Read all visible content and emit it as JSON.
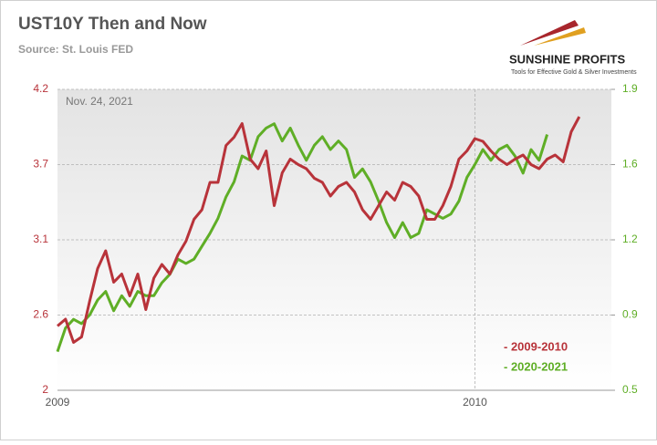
{
  "chart_data": {
    "type": "line",
    "title": "UST10Y Then and Now",
    "subtitle": "Source: St. Louis FED",
    "annotation": "Nov. 24, 2021",
    "logo": {
      "name": "SUNSHINE PROFITS",
      "tagline": "Tools for Effective Gold & Silver Investments"
    },
    "categories": [
      "2009",
      null,
      null,
      null,
      null,
      null,
      null,
      null,
      null,
      null,
      null,
      null,
      null,
      null,
      null,
      null,
      null,
      null,
      null,
      null,
      null,
      null,
      null,
      null,
      null,
      null,
      null,
      null,
      null,
      null,
      null,
      null,
      null,
      null,
      null,
      null,
      null,
      null,
      null,
      null,
      null,
      null,
      null,
      null,
      null,
      null,
      null,
      null,
      null,
      null,
      null,
      null,
      "2010",
      null,
      null,
      null,
      null,
      null,
      null,
      null,
      null,
      null,
      null,
      null,
      null,
      null,
      null,
      null,
      null,
      null
    ],
    "ylim": [
      2.0,
      4.2
    ],
    "yticks": [
      2.0,
      {
        "value": 2.55,
        "label": "2.6"
      },
      3.1,
      {
        "value": 3.65,
        "label": "3.7"
      },
      4.2
    ],
    "y2lim": [
      0.5,
      1.9
    ],
    "y2ticks": [
      0.5,
      {
        "value": 0.85,
        "label": "0.9"
      },
      1.2,
      {
        "value": 1.55,
        "label": "1.6"
      },
      1.9
    ],
    "grid": true,
    "series": [
      {
        "name": "- 2009-2010",
        "color": "#b8333a",
        "values": [
          2.47,
          2.52,
          2.35,
          2.39,
          2.65,
          2.89,
          3.02,
          2.79,
          2.85,
          2.69,
          2.85,
          2.59,
          2.82,
          2.92,
          2.85,
          2.99,
          3.09,
          3.25,
          3.32,
          3.52,
          3.52,
          3.79,
          3.85,
          3.95,
          3.69,
          3.62,
          3.75,
          3.35,
          3.59,
          3.69,
          3.65,
          3.62,
          3.55,
          3.52,
          3.42,
          3.49,
          3.52,
          3.45,
          3.32,
          3.25,
          3.35,
          3.45,
          3.39,
          3.52,
          3.49,
          3.42,
          3.25,
          3.25,
          3.35,
          3.49,
          3.69,
          3.75,
          3.84,
          3.82,
          3.75,
          3.69,
          3.65,
          3.69,
          3.72,
          3.65,
          3.62,
          3.69,
          3.72,
          3.67,
          3.89,
          4.0,
          null,
          null,
          null,
          null
        ]
      },
      {
        "name": "- 2020-2021",
        "color": "#5fae26",
        "axis": "y2",
        "values": [
          0.68,
          0.79,
          0.83,
          0.81,
          0.85,
          0.92,
          0.96,
          0.87,
          0.94,
          0.89,
          0.96,
          0.94,
          0.94,
          1.0,
          1.04,
          1.11,
          1.09,
          1.11,
          1.17,
          1.23,
          1.3,
          1.4,
          1.47,
          1.59,
          1.57,
          1.68,
          1.72,
          1.74,
          1.66,
          1.72,
          1.64,
          1.57,
          1.64,
          1.68,
          1.62,
          1.66,
          1.62,
          1.49,
          1.53,
          1.47,
          1.38,
          1.28,
          1.21,
          1.28,
          1.21,
          1.23,
          1.34,
          1.32,
          1.3,
          1.32,
          1.38,
          1.49,
          1.55,
          1.62,
          1.57,
          1.62,
          1.64,
          1.59,
          1.51,
          1.62,
          1.57,
          1.69,
          null,
          null,
          null,
          null,
          null,
          null,
          null,
          null
        ]
      }
    ]
  }
}
